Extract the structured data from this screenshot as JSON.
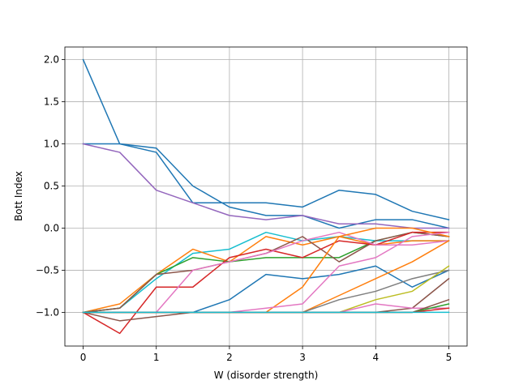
{
  "chart_data": {
    "type": "line",
    "title": "",
    "xlabel": "W (disorder strength)",
    "ylabel": "Bott Index",
    "xlim": [
      -0.25,
      5.25
    ],
    "ylim": [
      -1.4,
      2.15
    ],
    "x_ticks": [
      0,
      1,
      2,
      3,
      4,
      5
    ],
    "y_ticks": [
      -1.0,
      -0.5,
      0.0,
      0.5,
      1.0,
      1.5,
      2.0
    ],
    "x_tick_labels": [
      "0",
      "1",
      "2",
      "3",
      "4",
      "5"
    ],
    "y_tick_labels": [
      "−1.0",
      "−0.5",
      "0.0",
      "0.5",
      "1.0",
      "1.5",
      "2.0"
    ],
    "grid": true,
    "x": [
      0,
      0.5,
      1,
      1.5,
      2,
      2.5,
      3,
      3.5,
      4,
      4.5,
      5
    ],
    "series": [
      {
        "color": "#1f77b4",
        "values": [
          2.0,
          1.0,
          0.95,
          0.5,
          0.25,
          0.15,
          0.15,
          0.0,
          0.1,
          0.1,
          0.0
        ]
      },
      {
        "color": "#1f77b4",
        "values": [
          1.0,
          1.0,
          0.9,
          0.3,
          0.3,
          0.3,
          0.25,
          0.45,
          0.4,
          0.2,
          0.1
        ]
      },
      {
        "color": "#9467bd",
        "values": [
          1.0,
          0.9,
          0.45,
          0.3,
          0.15,
          0.1,
          0.15,
          0.05,
          0.05,
          0.0,
          0.0
        ]
      },
      {
        "color": "#17becf",
        "values": [
          -1.0,
          -0.95,
          -0.6,
          -0.3,
          -0.25,
          -0.05,
          -0.15,
          -0.1,
          -0.15,
          -0.15,
          -0.15
        ]
      },
      {
        "color": "#ff7f0e",
        "values": [
          -1.0,
          -0.9,
          -0.55,
          -0.25,
          -0.4,
          -0.1,
          -0.2,
          -0.1,
          -0.2,
          -0.15,
          -0.15
        ]
      },
      {
        "color": "#2ca02c",
        "values": [
          -1.0,
          -0.95,
          -0.55,
          -0.35,
          -0.4,
          -0.35,
          -0.35,
          -0.35,
          -0.15,
          -0.05,
          -0.1
        ]
      },
      {
        "color": "#8c564b",
        "values": [
          -1.0,
          -0.95,
          -0.55,
          -0.5,
          -0.4,
          -0.3,
          -0.1,
          -0.4,
          -0.15,
          -0.05,
          -0.1
        ]
      },
      {
        "color": "#d62728",
        "values": [
          -1.0,
          -1.25,
          -0.7,
          -0.7,
          -0.35,
          -0.25,
          -0.35,
          -0.15,
          -0.2,
          -0.05,
          -0.05
        ]
      },
      {
        "color": "#e377c2",
        "values": [
          -1.0,
          -1.0,
          -1.0,
          -0.5,
          -0.4,
          -0.3,
          -0.15,
          -0.05,
          -0.2,
          -0.2,
          -0.15
        ]
      },
      {
        "color": "#1f77b4",
        "values": [
          -1.0,
          -1.0,
          -1.0,
          -1.0,
          -0.85,
          -0.55,
          -0.6,
          -0.55,
          -0.45,
          -0.7,
          -0.5
        ]
      },
      {
        "color": "#ff7f0e",
        "values": [
          -1.0,
          -1.0,
          -1.0,
          -1.0,
          -1.0,
          -1.0,
          -0.7,
          -0.1,
          0.0,
          0.0,
          -0.1
        ]
      },
      {
        "color": "#e377c2",
        "values": [
          -1.0,
          -1.0,
          -1.0,
          -1.0,
          -1.0,
          -0.95,
          -0.9,
          -0.45,
          -0.35,
          -0.1,
          -0.05
        ]
      },
      {
        "color": "#ff7f0e",
        "values": [
          -1.0,
          -1.0,
          -1.0,
          -1.0,
          -1.0,
          -1.0,
          -1.0,
          -0.8,
          -0.6,
          -0.4,
          -0.15
        ]
      },
      {
        "color": "#7f7f7f",
        "values": [
          -1.0,
          -1.0,
          -1.0,
          -1.0,
          -1.0,
          -1.0,
          -1.0,
          -0.85,
          -0.75,
          -0.6,
          -0.5
        ]
      },
      {
        "color": "#bcbd22",
        "values": [
          -1.0,
          -1.0,
          -1.0,
          -1.0,
          -1.0,
          -1.0,
          -1.0,
          -1.0,
          -0.85,
          -0.75,
          -0.45
        ]
      },
      {
        "color": "#8c564b",
        "values": [
          -1.0,
          -1.1,
          -1.05,
          -1.0,
          -1.0,
          -1.0,
          -1.0,
          -1.0,
          -1.0,
          -0.95,
          -0.6
        ]
      },
      {
        "color": "#e377c2",
        "values": [
          -1.0,
          -1.0,
          -1.0,
          -1.0,
          -1.0,
          -1.0,
          -1.0,
          -1.0,
          -0.9,
          -0.95,
          -0.95
        ]
      },
      {
        "color": "#8c564b",
        "values": [
          -1.0,
          -1.0,
          -1.0,
          -1.0,
          -1.0,
          -1.0,
          -1.0,
          -1.0,
          -1.0,
          -1.0,
          -0.85
        ]
      },
      {
        "color": "#2ca02c",
        "values": [
          -1.0,
          -1.0,
          -1.0,
          -1.0,
          -1.0,
          -1.0,
          -1.0,
          -1.0,
          -1.0,
          -1.0,
          -0.9
        ]
      },
      {
        "color": "#d62728",
        "values": [
          -1.0,
          -1.0,
          -1.0,
          -1.0,
          -1.0,
          -1.0,
          -1.0,
          -1.0,
          -1.0,
          -1.0,
          -0.95
        ]
      },
      {
        "color": "#17becf",
        "values": [
          -1.0,
          -1.0,
          -1.0,
          -1.0,
          -1.0,
          -1.0,
          -1.0,
          -1.0,
          -1.0,
          -1.0,
          -1.0
        ]
      }
    ]
  }
}
